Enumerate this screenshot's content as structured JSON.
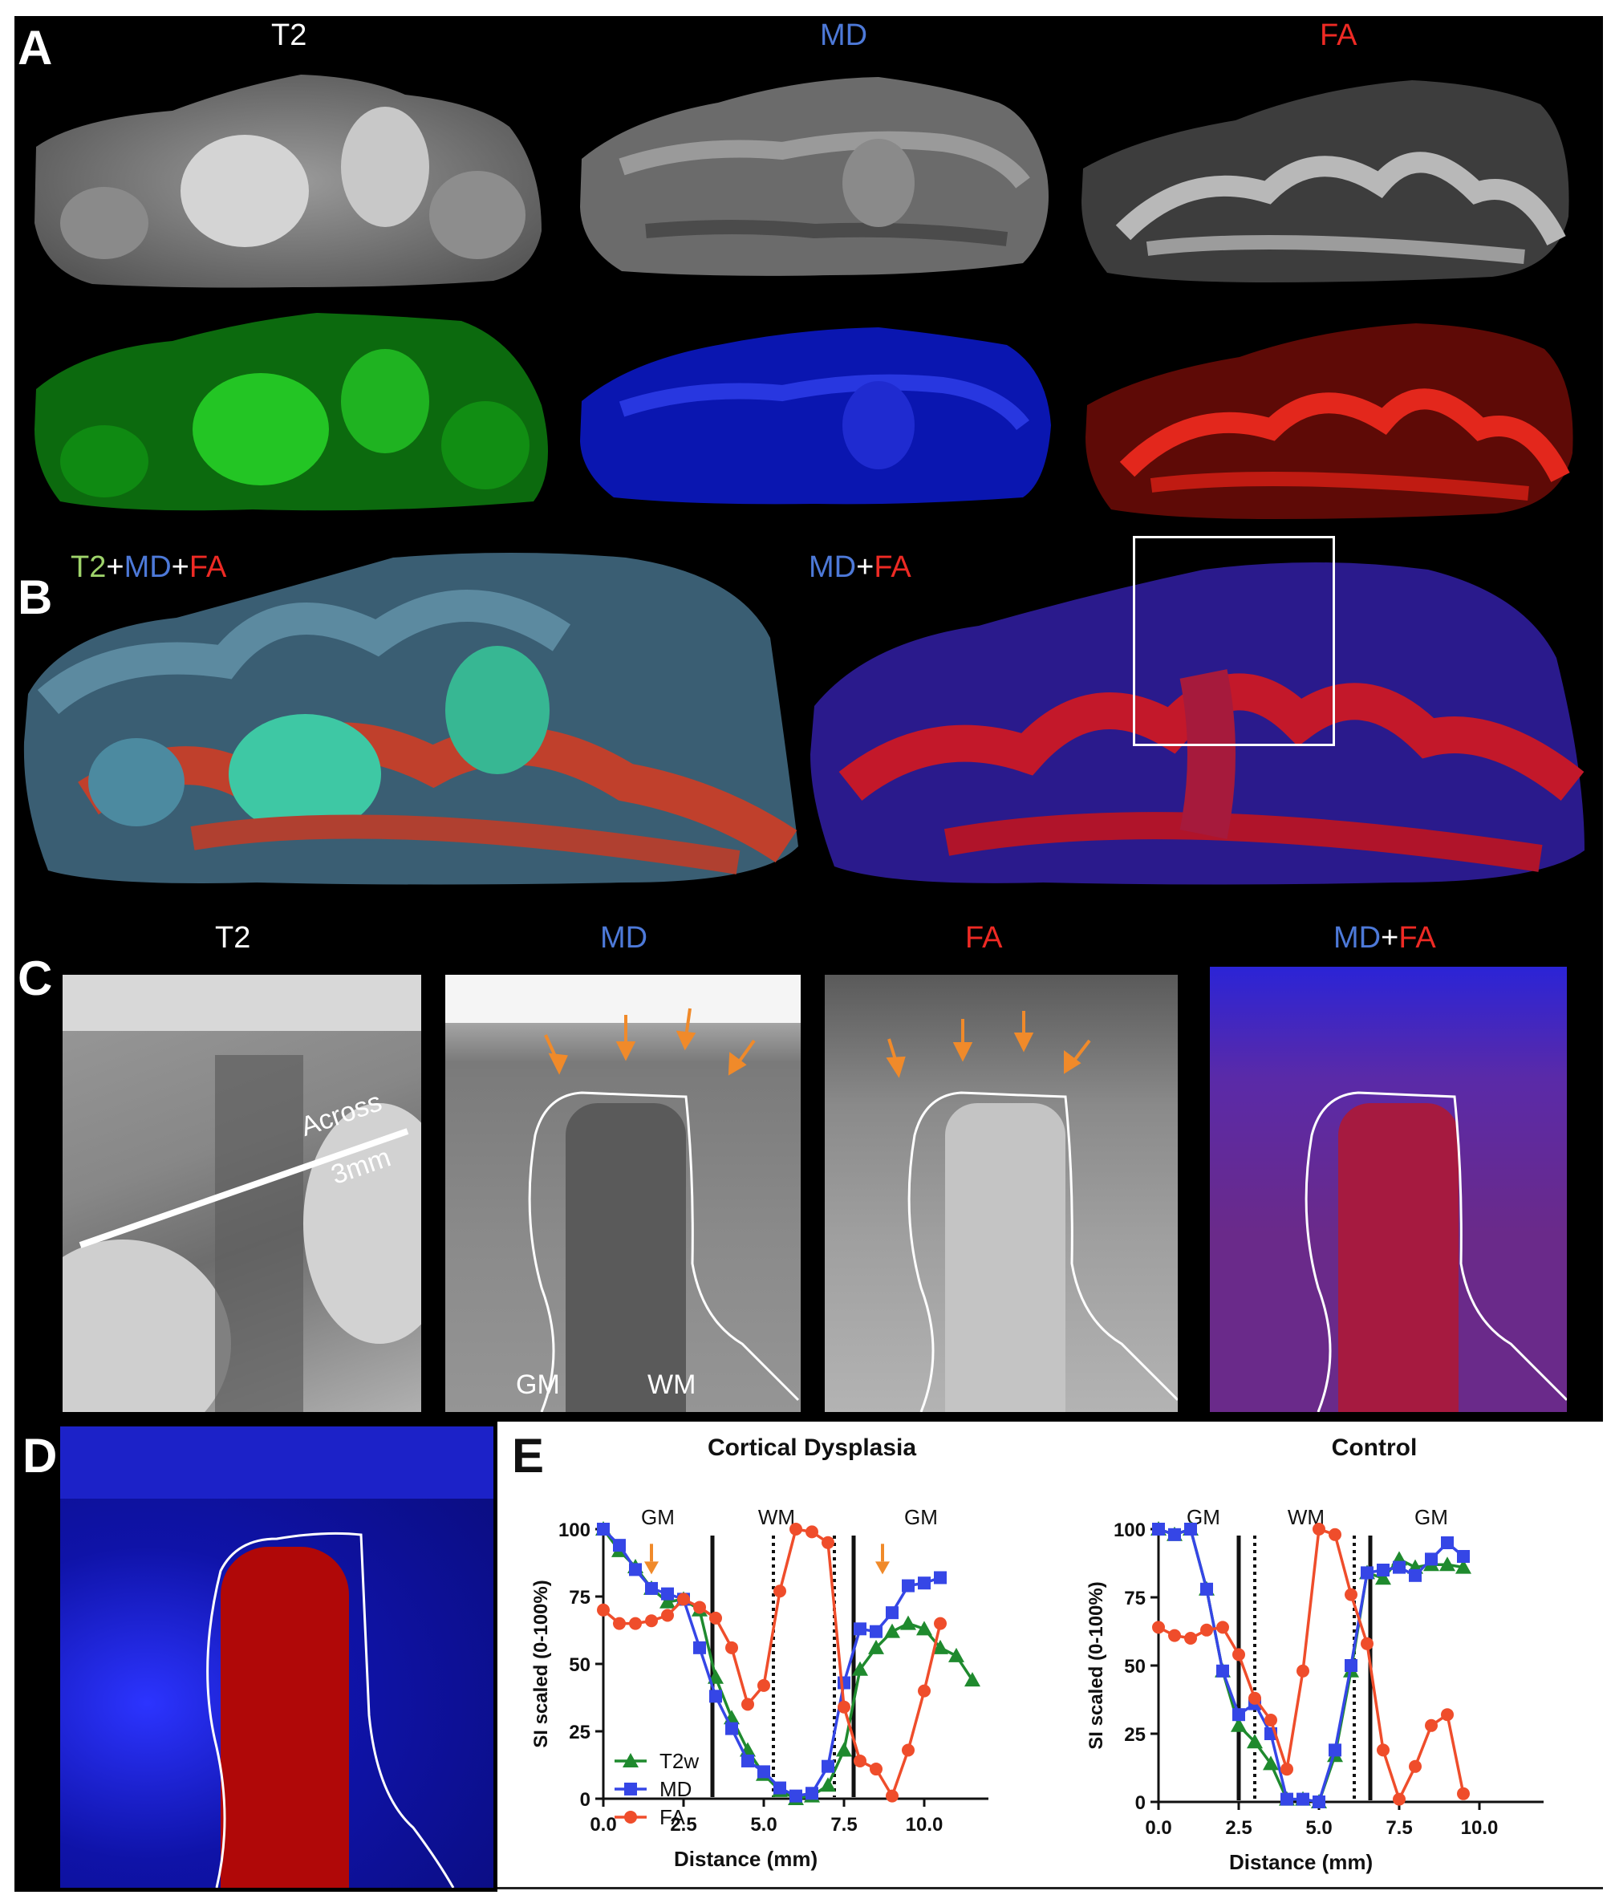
{
  "panel_A": {
    "letter": "A",
    "titles": {
      "t2": "T2",
      "md": "MD",
      "fa": "FA"
    }
  },
  "panel_B": {
    "letter": "B",
    "title_left": {
      "t2": "T2",
      "plus1": "+",
      "md": "MD",
      "plus2": "+",
      "fa": "FA"
    },
    "title_right": {
      "md": "MD",
      "plus": "+",
      "fa": "FA"
    }
  },
  "panel_C": {
    "letter": "C",
    "titles": {
      "t2": "T2",
      "md": "MD",
      "fa": "FA",
      "combo_md": "MD",
      "combo_plus": "+",
      "combo_fa": "FA"
    },
    "line_label_1": "Across",
    "line_label_2": "3mm",
    "gm_label": "GM",
    "wm_label": "WM"
  },
  "panel_D": {
    "letter": "D"
  },
  "panel_E": {
    "letter": "E",
    "colors": {
      "T2w": "#1f8a2e",
      "MD": "#3546e6",
      "FA": "#ef4d2b"
    }
  },
  "chart_data": [
    {
      "type": "line",
      "title": "Cortical Dysplasia",
      "xlabel": "Distance (mm)",
      "ylabel": "SI scaled (0-100%)",
      "xlim": [
        0,
        12
      ],
      "ylim": [
        0,
        100
      ],
      "xticks": [
        "0.0",
        "2.5",
        "5.0",
        "7.5",
        "10.0"
      ],
      "yticks": [
        "0",
        "25",
        "50",
        "75",
        "100"
      ],
      "region_labels": [
        "GM",
        "WM",
        "GM"
      ],
      "solid_lines_x": [
        3.4,
        7.8
      ],
      "dotted_lines_x": [
        5.3,
        7.2
      ],
      "series": [
        {
          "name": "T2w",
          "x": [
            0.0,
            0.5,
            1.0,
            1.5,
            2.0,
            2.5,
            3.0,
            3.5,
            4.0,
            4.5,
            5.0,
            5.5,
            6.0,
            6.5,
            7.0,
            7.5,
            8.0,
            8.5,
            9.0,
            9.5,
            10.0,
            10.5,
            11.0,
            11.5
          ],
          "y": [
            100,
            92,
            86,
            78,
            73,
            74,
            70,
            45,
            30,
            18,
            9,
            3,
            0,
            1,
            5,
            18,
            48,
            56,
            62,
            65,
            63,
            56,
            53,
            44
          ]
        },
        {
          "name": "MD",
          "x": [
            0.0,
            0.5,
            1.0,
            1.5,
            2.0,
            2.5,
            3.0,
            3.5,
            4.0,
            4.5,
            5.0,
            5.5,
            6.0,
            6.5,
            7.0,
            7.5,
            8.0,
            8.5,
            9.0,
            9.5,
            10.0,
            10.5
          ],
          "y": [
            100,
            94,
            85,
            78,
            76,
            74,
            56,
            38,
            26,
            14,
            10,
            4,
            1,
            2,
            12,
            43,
            63,
            62,
            69,
            79,
            80,
            82
          ]
        },
        {
          "name": "FA",
          "x": [
            0.0,
            0.5,
            1.0,
            1.5,
            2.0,
            2.5,
            3.0,
            3.5,
            4.0,
            4.5,
            5.0,
            5.5,
            6.0,
            6.5,
            7.0,
            7.5,
            8.0,
            8.5,
            9.0,
            9.5,
            10.0,
            10.5
          ],
          "y": [
            70,
            65,
            65,
            66,
            68,
            74,
            71,
            67,
            56,
            35,
            42,
            77,
            100,
            99,
            95,
            34,
            14,
            11,
            1,
            18,
            40,
            65
          ]
        }
      ],
      "arrows_x": [
        1.5,
        8.7
      ]
    },
    {
      "type": "line",
      "title": "Control",
      "xlabel": "Distance (mm)",
      "ylabel": "SI scaled (0-100%)",
      "xlim": [
        0,
        12
      ],
      "ylim": [
        0,
        100
      ],
      "xticks": [
        "0.0",
        "2.5",
        "5.0",
        "7.5",
        "10.0"
      ],
      "yticks": [
        "0",
        "25",
        "50",
        "75",
        "100"
      ],
      "region_labels": [
        "GM",
        "WM",
        "GM"
      ],
      "solid_lines_x": [
        2.5,
        6.6
      ],
      "dotted_lines_x": [
        3.0,
        6.1
      ],
      "series": [
        {
          "name": "T2w",
          "x": [
            0.0,
            0.5,
            1.0,
            1.5,
            2.0,
            2.5,
            3.0,
            3.5,
            4.0,
            4.5,
            5.0,
            5.5,
            6.0,
            6.5,
            7.0,
            7.5,
            8.0,
            8.5,
            9.0,
            9.5
          ],
          "y": [
            100,
            98,
            100,
            78,
            48,
            28,
            22,
            14,
            1,
            1,
            0,
            17,
            48,
            84,
            82,
            89,
            86,
            87,
            87,
            86
          ]
        },
        {
          "name": "MD",
          "x": [
            0.0,
            0.5,
            1.0,
            1.5,
            2.0,
            2.5,
            3.0,
            3.5,
            4.0,
            4.5,
            5.0,
            5.5,
            6.0,
            6.5,
            7.0,
            7.5,
            8.0,
            8.5,
            9.0,
            9.5
          ],
          "y": [
            100,
            98,
            100,
            78,
            48,
            32,
            36,
            25,
            1,
            1,
            0,
            19,
            50,
            84,
            85,
            86,
            83,
            89,
            95,
            90
          ]
        },
        {
          "name": "FA",
          "x": [
            0.0,
            0.5,
            1.0,
            1.5,
            2.0,
            2.5,
            3.0,
            3.5,
            4.0,
            4.5,
            5.0,
            5.5,
            6.0,
            6.5,
            7.0,
            7.5,
            8.0,
            8.5,
            9.0,
            9.5
          ],
          "y": [
            64,
            61,
            60,
            63,
            64,
            54,
            38,
            30,
            12,
            48,
            100,
            98,
            76,
            58,
            19,
            1,
            13,
            28,
            32,
            3
          ]
        }
      ]
    }
  ]
}
